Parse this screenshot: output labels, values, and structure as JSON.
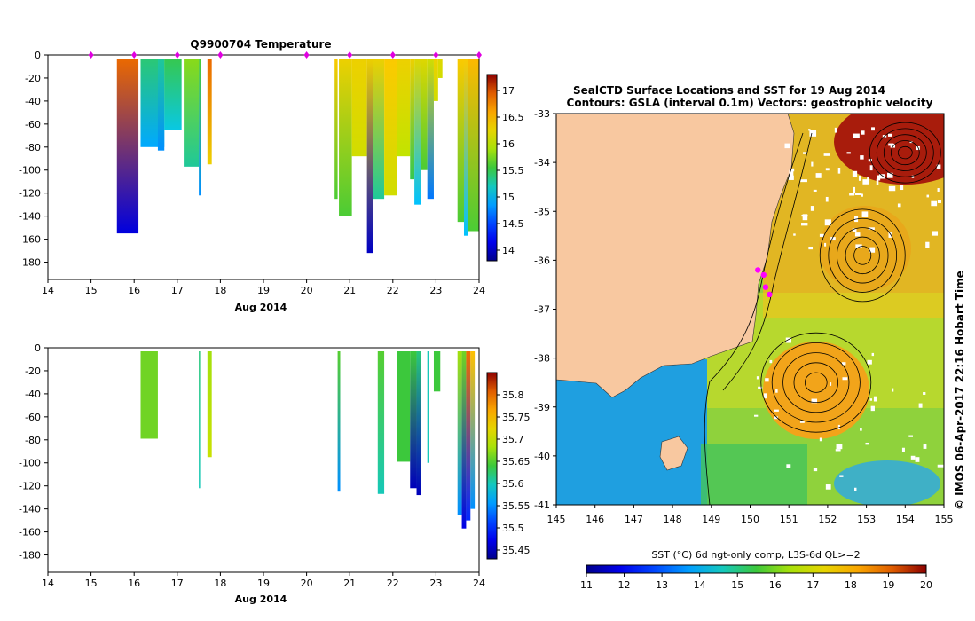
{
  "chart_data": [
    {
      "type": "heatmap",
      "title": "Q9900704  Temperature",
      "xlabel": "Aug 2014",
      "xlim": [
        14,
        24
      ],
      "ylim": [
        -195,
        0
      ],
      "x_ticks": [
        "14",
        "15",
        "16",
        "17",
        "18",
        "19",
        "20",
        "21",
        "22",
        "23",
        "24"
      ],
      "y_ticks": [
        "0",
        "-20",
        "-40",
        "-60",
        "-80",
        "-100",
        "-120",
        "-140",
        "-160",
        "-180"
      ],
      "colorbar": {
        "range": [
          13.8,
          17.3
        ],
        "ticks": [
          "14",
          "14.5",
          "15",
          "15.5",
          "16",
          "16.5",
          "17"
        ]
      },
      "profile_markers": [
        15.0,
        16.0,
        17.0,
        18.0,
        20.0,
        21.0,
        22.0,
        23.0,
        24.0
      ],
      "profiles": [
        {
          "x0": 15.6,
          "x1": 16.1,
          "depth": 155,
          "top": 16.9,
          "bottom": 14.1
        },
        {
          "x0": 16.15,
          "x1": 16.7,
          "depth": 80,
          "top": 15.4,
          "bottom": 14.9
        },
        {
          "x0": 16.55,
          "x1": 16.7,
          "depth": 83,
          "top": 15.3,
          "bottom": 14.8
        },
        {
          "x0": 16.7,
          "x1": 17.1,
          "depth": 65,
          "top": 15.5,
          "bottom": 15.1
        },
        {
          "x0": 17.15,
          "x1": 17.5,
          "depth": 97,
          "top": 15.8,
          "bottom": 15.3
        },
        {
          "x0": 17.5,
          "x1": 17.55,
          "depth": 122,
          "top": 15.6,
          "bottom": 14.8
        },
        {
          "x0": 17.7,
          "x1": 17.8,
          "depth": 95,
          "top": 16.9,
          "bottom": 16.3
        },
        {
          "x0": 20.65,
          "x1": 20.72,
          "depth": 125,
          "top": 16.4,
          "bottom": 15.6
        },
        {
          "x0": 20.75,
          "x1": 21.05,
          "depth": 140,
          "top": 16.3,
          "bottom": 15.6
        },
        {
          "x0": 21.05,
          "x1": 21.4,
          "depth": 88,
          "top": 16.3,
          "bottom": 16.1
        },
        {
          "x0": 21.4,
          "x1": 21.55,
          "depth": 172,
          "top": 16.3,
          "bottom": 14.0
        },
        {
          "x0": 21.55,
          "x1": 21.8,
          "depth": 125,
          "top": 16.3,
          "bottom": 15.3
        },
        {
          "x0": 21.8,
          "x1": 22.1,
          "depth": 122,
          "top": 16.4,
          "bottom": 16.1
        },
        {
          "x0": 22.1,
          "x1": 22.4,
          "depth": 88,
          "top": 16.3,
          "bottom": 16.0
        },
        {
          "x0": 22.4,
          "x1": 22.5,
          "depth": 108,
          "top": 16.3,
          "bottom": 15.5
        },
        {
          "x0": 22.5,
          "x1": 22.65,
          "depth": 130,
          "top": 16.2,
          "bottom": 15.0
        },
        {
          "x0": 22.65,
          "x1": 22.8,
          "depth": 100,
          "top": 16.2,
          "bottom": 15.6
        },
        {
          "x0": 22.8,
          "x1": 22.95,
          "depth": 125,
          "top": 16.1,
          "bottom": 14.7
        },
        {
          "x0": 22.95,
          "x1": 23.05,
          "depth": 40,
          "top": 16.3,
          "bottom": 16.1
        },
        {
          "x0": 23.05,
          "x1": 23.15,
          "depth": 20,
          "top": 16.2,
          "bottom": 16.1
        },
        {
          "x0": 23.5,
          "x1": 23.65,
          "depth": 145,
          "top": 16.4,
          "bottom": 15.6
        },
        {
          "x0": 23.65,
          "x1": 23.75,
          "depth": 157,
          "top": 16.4,
          "bottom": 15.0
        },
        {
          "x0": 23.75,
          "x1": 24.1,
          "depth": 153,
          "top": 16.5,
          "bottom": 15.6
        }
      ]
    },
    {
      "type": "heatmap",
      "title": "",
      "xlabel": "Aug 2014",
      "xlim": [
        14,
        24
      ],
      "ylim": [
        -195,
        0
      ],
      "x_ticks": [
        "14",
        "15",
        "16",
        "17",
        "18",
        "19",
        "20",
        "21",
        "22",
        "23",
        "24"
      ],
      "y_ticks": [
        "0",
        "-20",
        "-40",
        "-60",
        "-80",
        "-100",
        "-120",
        "-140",
        "-160",
        "-180"
      ],
      "colorbar": {
        "range": [
          35.43,
          35.85
        ],
        "ticks": [
          "35.45",
          "35.5",
          "35.55",
          "35.6",
          "35.65",
          "35.7",
          "35.75",
          "35.8"
        ]
      },
      "profiles": [
        {
          "x0": 16.15,
          "x1": 16.55,
          "depth": 79,
          "top": 35.66,
          "bottom": 35.66
        },
        {
          "x0": 17.5,
          "x1": 17.53,
          "depth": 122,
          "top": 35.62,
          "bottom": 35.6
        },
        {
          "x0": 17.7,
          "x1": 17.8,
          "depth": 95,
          "top": 35.68,
          "bottom": 35.7
        },
        {
          "x0": 20.72,
          "x1": 20.78,
          "depth": 125,
          "top": 35.65,
          "bottom": 35.55
        },
        {
          "x0": 21.65,
          "x1": 21.8,
          "depth": 127,
          "top": 35.65,
          "bottom": 35.6
        },
        {
          "x0": 22.1,
          "x1": 22.4,
          "depth": 99,
          "top": 35.64,
          "bottom": 35.64
        },
        {
          "x0": 22.4,
          "x1": 22.55,
          "depth": 122,
          "top": 35.64,
          "bottom": 35.45
        },
        {
          "x0": 22.55,
          "x1": 22.65,
          "depth": 128,
          "top": 35.62,
          "bottom": 35.45
        },
        {
          "x0": 22.8,
          "x1": 22.83,
          "depth": 100,
          "top": 35.6,
          "bottom": 35.6
        },
        {
          "x0": 22.95,
          "x1": 23.1,
          "depth": 38,
          "top": 35.64,
          "bottom": 35.64
        },
        {
          "x0": 23.5,
          "x1": 23.6,
          "depth": 145,
          "top": 35.68,
          "bottom": 35.55
        },
        {
          "x0": 23.6,
          "x1": 23.7,
          "depth": 157,
          "top": 35.66,
          "bottom": 35.47
        },
        {
          "x0": 23.7,
          "x1": 23.8,
          "depth": 150,
          "top": 35.8,
          "bottom": 35.5
        },
        {
          "x0": 23.8,
          "x1": 23.9,
          "depth": 140,
          "top": 35.75,
          "bottom": 35.55
        }
      ]
    },
    {
      "type": "heatmap",
      "title": "SealCTD Surface Locations and SST for 19 Aug 2014",
      "subtitle": "Contours: GSLA (interval 0.1m) Vectors: geostrophic velocity",
      "xlim": [
        145,
        155
      ],
      "ylim": [
        -41,
        -33
      ],
      "x_ticks": [
        "145",
        "146",
        "147",
        "148",
        "149",
        "150",
        "151",
        "152",
        "153",
        "154",
        "155"
      ],
      "y_ticks": [
        "-33",
        "-34",
        "-35",
        "-36",
        "-37",
        "-38",
        "-39",
        "-40",
        "-41"
      ],
      "colorbar": {
        "label": "SST (°C) 6d ngt-only comp, L3S-6d QL>=2",
        "range": [
          11,
          20
        ],
        "ticks": [
          "11",
          "12",
          "13",
          "14",
          "15",
          "16",
          "17",
          "18",
          "19",
          "20"
        ]
      },
      "seal_locations": [
        [
          150.2,
          -36.2
        ],
        [
          150.35,
          -36.3
        ],
        [
          150.4,
          -36.55
        ],
        [
          150.5,
          -36.7
        ]
      ],
      "eddies": [
        [
          151.7,
          -38.5
        ],
        [
          152.9,
          -35.9
        ],
        [
          154.0,
          -33.8
        ]
      ],
      "credit": "© IMOS 06-Apr-2017 22:16 Hobart Time"
    }
  ]
}
